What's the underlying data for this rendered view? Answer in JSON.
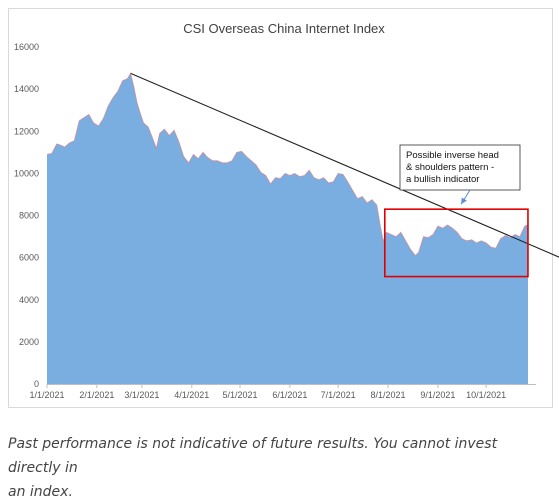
{
  "chart_data": {
    "type": "area",
    "title": "CSI Overseas China Internet Index",
    "xlabel": "",
    "ylabel": "",
    "ylim": [
      0,
      16000
    ],
    "y_ticks": [
      "0",
      "2000",
      "4000",
      "6000",
      "8000",
      "10000",
      "12000",
      "14000",
      "16000"
    ],
    "x_ticks": [
      "1/1/2021",
      "2/1/2021",
      "3/1/2021",
      "4/1/2021",
      "5/1/2021",
      "6/1/2021",
      "7/1/2021",
      "8/1/2021",
      "9/1/2021",
      "10/1/2021"
    ],
    "grid": false,
    "legend": "none",
    "fill_color": "#7aaee0",
    "edge_color": "#e07a82",
    "series": [
      {
        "points": [
          [
            "2021-01-01",
            10900
          ],
          [
            "2021-01-04",
            10950
          ],
          [
            "2021-01-07",
            11400
          ],
          [
            "2021-01-09",
            11350
          ],
          [
            "2021-01-12",
            11250
          ],
          [
            "2021-01-15",
            11450
          ],
          [
            "2021-01-18",
            11550
          ],
          [
            "2021-01-21",
            12500
          ],
          [
            "2021-01-24",
            12650
          ],
          [
            "2021-01-27",
            12800
          ],
          [
            "2021-01-30",
            12400
          ],
          [
            "2021-02-02",
            12250
          ],
          [
            "2021-02-05",
            12600
          ],
          [
            "2021-02-08",
            13200
          ],
          [
            "2021-02-11",
            13600
          ],
          [
            "2021-02-14",
            13900
          ],
          [
            "2021-02-17",
            14400
          ],
          [
            "2021-02-20",
            14500
          ],
          [
            "2021-02-22",
            14750
          ],
          [
            "2021-02-24",
            14100
          ],
          [
            "2021-02-26",
            13350
          ],
          [
            "2021-02-28",
            12850
          ],
          [
            "2021-03-02",
            12400
          ],
          [
            "2021-03-05",
            12200
          ],
          [
            "2021-03-08",
            11600
          ],
          [
            "2021-03-10",
            11200
          ],
          [
            "2021-03-12",
            11900
          ],
          [
            "2021-03-15",
            12100
          ],
          [
            "2021-03-18",
            11800
          ],
          [
            "2021-03-21",
            12050
          ],
          [
            "2021-03-24",
            11500
          ],
          [
            "2021-03-27",
            10800
          ],
          [
            "2021-03-30",
            10500
          ],
          [
            "2021-04-02",
            10900
          ],
          [
            "2021-04-05",
            10700
          ],
          [
            "2021-04-08",
            11000
          ],
          [
            "2021-04-11",
            10750
          ],
          [
            "2021-04-14",
            10600
          ],
          [
            "2021-04-17",
            10600
          ],
          [
            "2021-04-20",
            10500
          ],
          [
            "2021-04-23",
            10500
          ],
          [
            "2021-04-26",
            10600
          ],
          [
            "2021-04-29",
            11000
          ],
          [
            "2021-05-02",
            11050
          ],
          [
            "2021-05-05",
            10800
          ],
          [
            "2021-05-08",
            10600
          ],
          [
            "2021-05-11",
            10400
          ],
          [
            "2021-05-14",
            10050
          ],
          [
            "2021-05-17",
            9900
          ],
          [
            "2021-05-20",
            9500
          ],
          [
            "2021-05-23",
            9800
          ],
          [
            "2021-05-26",
            9750
          ],
          [
            "2021-05-29",
            10000
          ],
          [
            "2021-06-01",
            9900
          ],
          [
            "2021-06-04",
            10000
          ],
          [
            "2021-06-07",
            9850
          ],
          [
            "2021-06-10",
            9900
          ],
          [
            "2021-06-13",
            10150
          ],
          [
            "2021-06-16",
            9800
          ],
          [
            "2021-06-19",
            9700
          ],
          [
            "2021-06-22",
            9800
          ],
          [
            "2021-06-25",
            9550
          ],
          [
            "2021-06-28",
            9600
          ],
          [
            "2021-07-01",
            10000
          ],
          [
            "2021-07-04",
            9950
          ],
          [
            "2021-07-07",
            9600
          ],
          [
            "2021-07-10",
            9200
          ],
          [
            "2021-07-13",
            8800
          ],
          [
            "2021-07-16",
            8900
          ],
          [
            "2021-07-19",
            8600
          ],
          [
            "2021-07-22",
            8750
          ],
          [
            "2021-07-25",
            8500
          ],
          [
            "2021-07-27",
            7600
          ],
          [
            "2021-07-29",
            6800
          ],
          [
            "2021-07-31",
            7200
          ],
          [
            "2021-08-03",
            7100
          ],
          [
            "2021-08-06",
            7000
          ],
          [
            "2021-08-09",
            7200
          ],
          [
            "2021-08-12",
            6800
          ],
          [
            "2021-08-15",
            6400
          ],
          [
            "2021-08-18",
            6100
          ],
          [
            "2021-08-20",
            6250
          ],
          [
            "2021-08-23",
            7000
          ],
          [
            "2021-08-26",
            6950
          ],
          [
            "2021-08-29",
            7100
          ],
          [
            "2021-09-01",
            7500
          ],
          [
            "2021-09-04",
            7400
          ],
          [
            "2021-09-07",
            7550
          ],
          [
            "2021-09-10",
            7400
          ],
          [
            "2021-09-13",
            7200
          ],
          [
            "2021-09-16",
            6900
          ],
          [
            "2021-09-19",
            6800
          ],
          [
            "2021-09-22",
            6850
          ],
          [
            "2021-09-25",
            6700
          ],
          [
            "2021-09-28",
            6800
          ],
          [
            "2021-10-01",
            6700
          ],
          [
            "2021-10-04",
            6500
          ],
          [
            "2021-10-07",
            6450
          ],
          [
            "2021-10-10",
            6900
          ],
          [
            "2021-10-13",
            7050
          ],
          [
            "2021-10-16",
            6950
          ],
          [
            "2021-10-19",
            7100
          ],
          [
            "2021-10-22",
            7000
          ],
          [
            "2021-10-25",
            7500
          ],
          [
            "2021-10-27",
            7550
          ]
        ]
      }
    ],
    "trendline": {
      "start": [
        "2021-02-22",
        14750
      ],
      "end": [
        "2021-11-01",
        6100
      ],
      "color": "#222222"
    },
    "highlight_box": {
      "x_range": [
        "2021-07-30",
        "2021-10-27"
      ],
      "y_range": [
        5100,
        8300
      ],
      "color": "#e00000"
    },
    "annotation": {
      "lines": [
        "Possible inverse head",
        "& shoulders pattern  -",
        "a bullish indicator"
      ],
      "arrow_target": [
        "2021-09-08",
        8300
      ]
    }
  },
  "disclaimer": {
    "line1": "Past performance is not indicative of future results.  You cannot invest directly in",
    "line2": "an index."
  }
}
